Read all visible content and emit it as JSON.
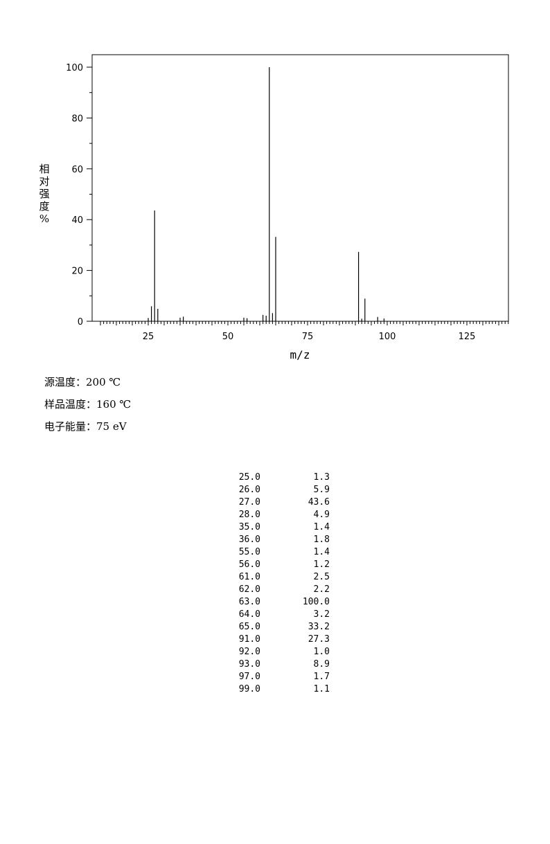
{
  "chart_data": {
    "type": "bar",
    "xlabel": "m/z",
    "ylabel": "相对强度%",
    "xlim": [
      10,
      140
    ],
    "ylim": [
      0,
      100
    ],
    "x_ticks": [
      25,
      50,
      75,
      100,
      125
    ],
    "y_ticks": [
      0,
      20,
      40,
      60,
      80,
      100
    ],
    "peaks": [
      {
        "mz": 25.0,
        "intensity": 1.3
      },
      {
        "mz": 26.0,
        "intensity": 5.9
      },
      {
        "mz": 27.0,
        "intensity": 43.6
      },
      {
        "mz": 28.0,
        "intensity": 4.9
      },
      {
        "mz": 35.0,
        "intensity": 1.4
      },
      {
        "mz": 36.0,
        "intensity": 1.8
      },
      {
        "mz": 55.0,
        "intensity": 1.4
      },
      {
        "mz": 56.0,
        "intensity": 1.2
      },
      {
        "mz": 61.0,
        "intensity": 2.5
      },
      {
        "mz": 62.0,
        "intensity": 2.2
      },
      {
        "mz": 63.0,
        "intensity": 100.0
      },
      {
        "mz": 64.0,
        "intensity": 3.2
      },
      {
        "mz": 65.0,
        "intensity": 33.2
      },
      {
        "mz": 91.0,
        "intensity": 27.3
      },
      {
        "mz": 92.0,
        "intensity": 1.0
      },
      {
        "mz": 93.0,
        "intensity": 8.9
      },
      {
        "mz": 97.0,
        "intensity": 1.7
      },
      {
        "mz": 99.0,
        "intensity": 1.1
      }
    ]
  },
  "conditions": [
    {
      "label": "源温度：",
      "value": "200 ℃"
    },
    {
      "label": "样品温度：",
      "value": "160 ℃"
    },
    {
      "label": "电子能量：",
      "value": "75 eV"
    }
  ],
  "table": [
    {
      "mz": "25.0",
      "intensity": "1.3"
    },
    {
      "mz": "26.0",
      "intensity": "5.9"
    },
    {
      "mz": "27.0",
      "intensity": "43.6"
    },
    {
      "mz": "28.0",
      "intensity": "4.9"
    },
    {
      "mz": "35.0",
      "intensity": "1.4"
    },
    {
      "mz": "36.0",
      "intensity": "1.8"
    },
    {
      "mz": "55.0",
      "intensity": "1.4"
    },
    {
      "mz": "56.0",
      "intensity": "1.2"
    },
    {
      "mz": "61.0",
      "intensity": "2.5"
    },
    {
      "mz": "62.0",
      "intensity": "2.2"
    },
    {
      "mz": "63.0",
      "intensity": "100.0"
    },
    {
      "mz": "64.0",
      "intensity": "3.2"
    },
    {
      "mz": "65.0",
      "intensity": "33.2"
    },
    {
      "mz": "91.0",
      "intensity": "27.3"
    },
    {
      "mz": "92.0",
      "intensity": "1.0"
    },
    {
      "mz": "93.0",
      "intensity": "8.9"
    },
    {
      "mz": "97.0",
      "intensity": "1.7"
    },
    {
      "mz": "99.0",
      "intensity": "1.1"
    }
  ]
}
